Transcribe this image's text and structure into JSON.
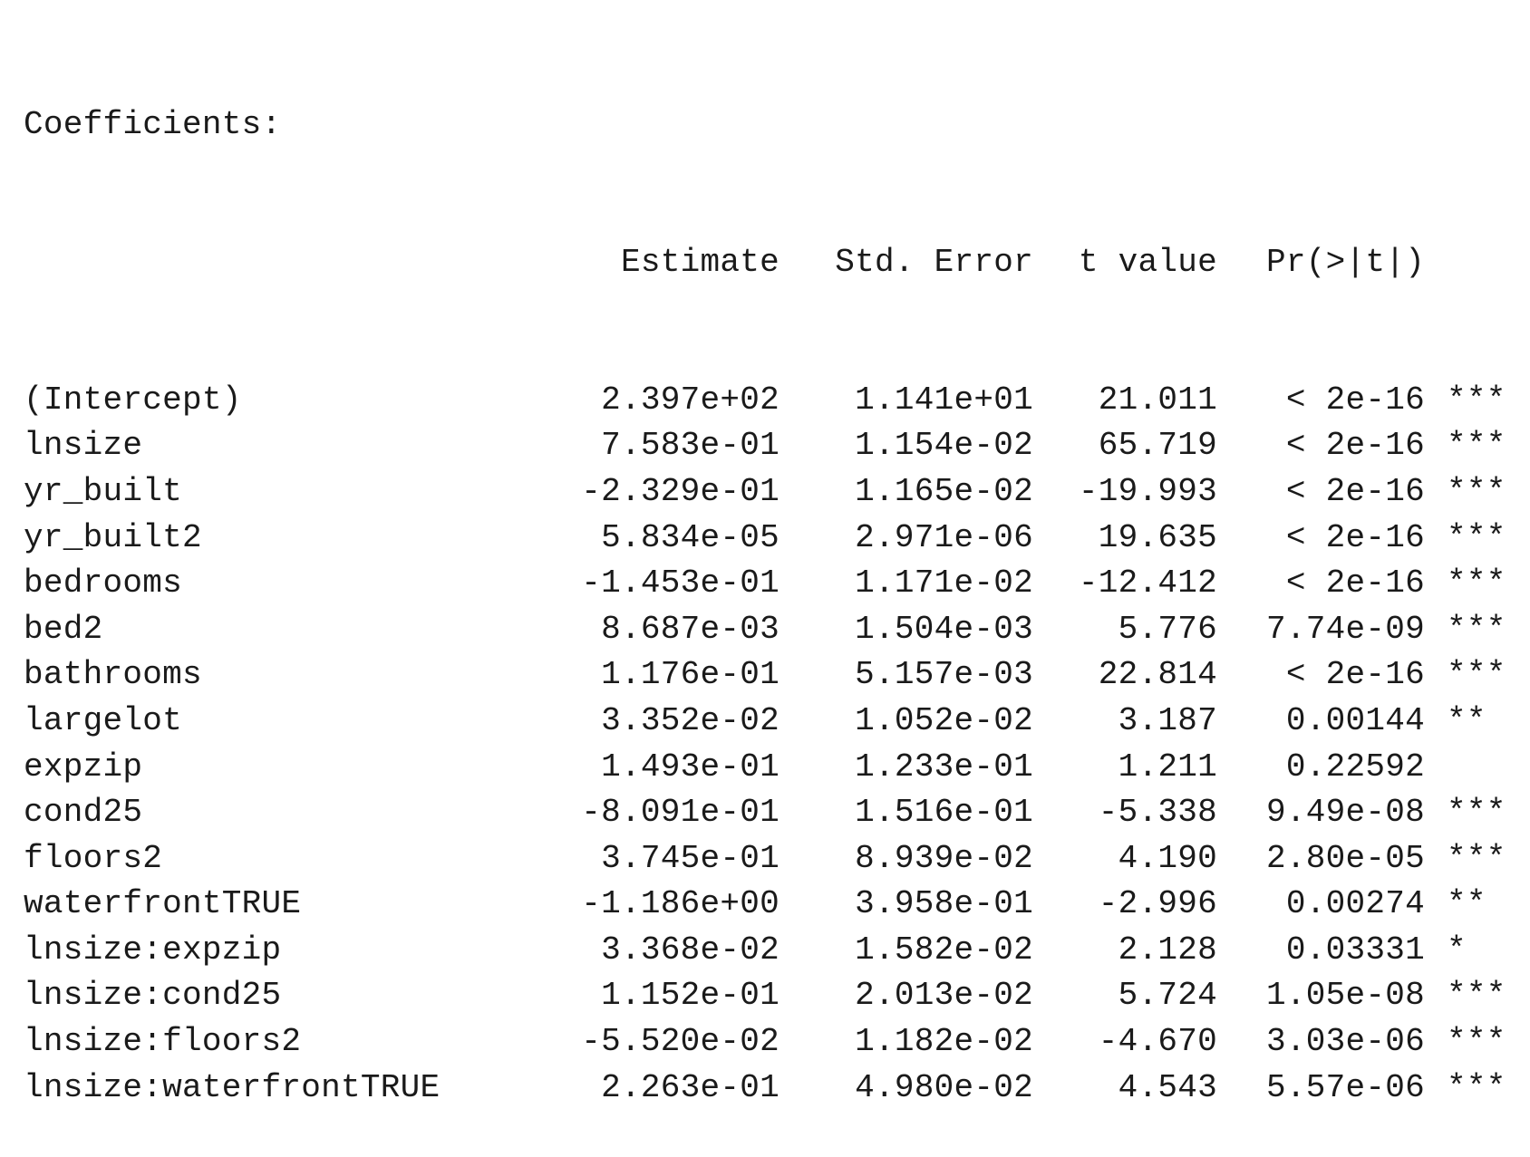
{
  "title": "Coefficients:",
  "headers": {
    "estimate": "Estimate",
    "std_error": "Std. Error",
    "t_value": "t value",
    "p_value": "Pr(>|t|)"
  },
  "rows": [
    {
      "term": "(Intercept)",
      "estimate": "2.397e+02",
      "std_error": "1.141e+01",
      "t_value": "21.011",
      "p_value": "< 2e-16",
      "signif": "***"
    },
    {
      "term": "lnsize",
      "estimate": "7.583e-01",
      "std_error": "1.154e-02",
      "t_value": "65.719",
      "p_value": "< 2e-16",
      "signif": "***"
    },
    {
      "term": "yr_built",
      "estimate": "-2.329e-01",
      "std_error": "1.165e-02",
      "t_value": "-19.993",
      "p_value": "< 2e-16",
      "signif": "***"
    },
    {
      "term": "yr_built2",
      "estimate": "5.834e-05",
      "std_error": "2.971e-06",
      "t_value": "19.635",
      "p_value": "< 2e-16",
      "signif": "***"
    },
    {
      "term": "bedrooms",
      "estimate": "-1.453e-01",
      "std_error": "1.171e-02",
      "t_value": "-12.412",
      "p_value": "< 2e-16",
      "signif": "***"
    },
    {
      "term": "bed2",
      "estimate": "8.687e-03",
      "std_error": "1.504e-03",
      "t_value": "5.776",
      "p_value": "7.74e-09",
      "signif": "***"
    },
    {
      "term": "bathrooms",
      "estimate": "1.176e-01",
      "std_error": "5.157e-03",
      "t_value": "22.814",
      "p_value": "< 2e-16",
      "signif": "***"
    },
    {
      "term": "largelot",
      "estimate": "3.352e-02",
      "std_error": "1.052e-02",
      "t_value": "3.187",
      "p_value": "0.00144",
      "signif": "**"
    },
    {
      "term": "expzip",
      "estimate": "1.493e-01",
      "std_error": "1.233e-01",
      "t_value": "1.211",
      "p_value": "0.22592",
      "signif": ""
    },
    {
      "term": "cond25",
      "estimate": "-8.091e-01",
      "std_error": "1.516e-01",
      "t_value": "-5.338",
      "p_value": "9.49e-08",
      "signif": "***"
    },
    {
      "term": "floors2",
      "estimate": "3.745e-01",
      "std_error": "8.939e-02",
      "t_value": "4.190",
      "p_value": "2.80e-05",
      "signif": "***"
    },
    {
      "term": "waterfrontTRUE",
      "estimate": "-1.186e+00",
      "std_error": "3.958e-01",
      "t_value": "-2.996",
      "p_value": "0.00274",
      "signif": "**"
    },
    {
      "term": "lnsize:expzip",
      "estimate": "3.368e-02",
      "std_error": "1.582e-02",
      "t_value": "2.128",
      "p_value": "0.03331",
      "signif": "*"
    },
    {
      "term": "lnsize:cond25",
      "estimate": "1.152e-01",
      "std_error": "2.013e-02",
      "t_value": "5.724",
      "p_value": "1.05e-08",
      "signif": "***"
    },
    {
      "term": "lnsize:floors2",
      "estimate": "-5.520e-02",
      "std_error": "1.182e-02",
      "t_value": "-4.670",
      "p_value": "3.03e-06",
      "signif": "***"
    },
    {
      "term": "lnsize:waterfrontTRUE",
      "estimate": "2.263e-01",
      "std_error": "4.980e-02",
      "t_value": "4.543",
      "p_value": "5.57e-06",
      "signif": "***"
    }
  ]
}
